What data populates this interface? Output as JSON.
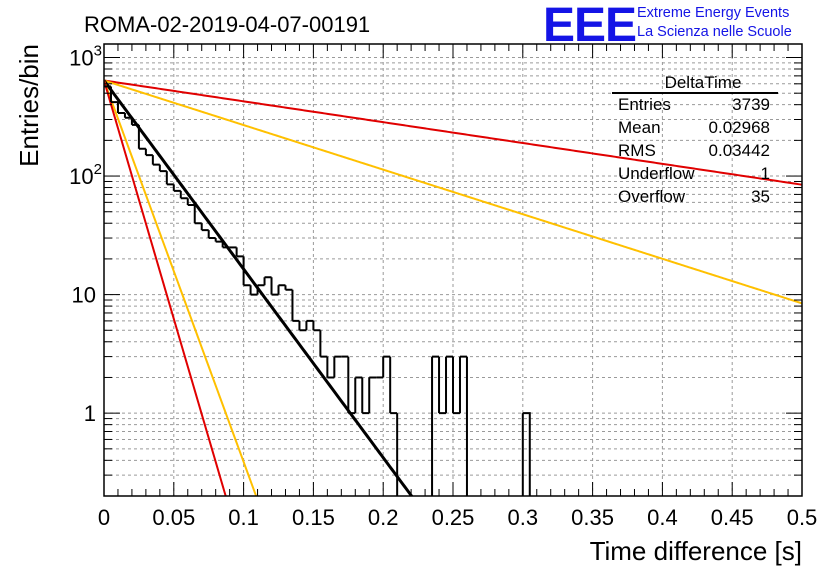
{
  "title": "ROMA-02-2019-04-07-00191",
  "logo": {
    "mark": "EEE",
    "line1": "Extreme Energy Events",
    "line2": "La Scienza nelle Scuole",
    "color": "#1414e6"
  },
  "stats_box": {
    "title": "DeltaTime",
    "rows": [
      {
        "label": "Entries",
        "value": "3739"
      },
      {
        "label": "Mean",
        "value": "0.02968"
      },
      {
        "label": "RMS",
        "value": "0.03442"
      },
      {
        "label": "Underflow",
        "value": "1"
      },
      {
        "label": "Overflow",
        "value": "35"
      }
    ]
  },
  "chart_data": {
    "type": "histogram",
    "title": "ROMA-02-2019-04-07-00191",
    "xlabel": "Time difference [s]",
    "ylabel": "Entries/bin",
    "xlim": [
      0,
      0.5
    ],
    "ylim": [
      0.2,
      1300
    ],
    "yscale": "log",
    "grid": true,
    "x_ticks": [
      "0",
      "0.05",
      "0.1",
      "0.15",
      "0.2",
      "0.25",
      "0.3",
      "0.35",
      "0.4",
      "0.45",
      "0.5"
    ],
    "y_ticks": [
      "1",
      "10",
      "10^2",
      "10^3"
    ],
    "histogram": {
      "bin_width": 0.005,
      "color": "#000000",
      "values": [
        570,
        420,
        340,
        310,
        270,
        170,
        150,
        125,
        110,
        85,
        75,
        65,
        57,
        40,
        35,
        30,
        28,
        25,
        25,
        21,
        12,
        10,
        12,
        14,
        10,
        12,
        11,
        6,
        5,
        6,
        5,
        3,
        2,
        3,
        3,
        1,
        2,
        1,
        2,
        2,
        3,
        1,
        0,
        0,
        0,
        0,
        0,
        3,
        1,
        3,
        1,
        3,
        0,
        0,
        0,
        0,
        0,
        0,
        0,
        0,
        1
      ]
    },
    "curves": [
      {
        "color": "#e00000",
        "A": 640,
        "tau": 0.247
      },
      {
        "color": "#ffc000",
        "A": 640,
        "tau": 0.1155
      },
      {
        "color": "#000000",
        "A": 640,
        "tau": 0.0273
      },
      {
        "color": "#ffc000",
        "A": 640,
        "tau": 0.0135
      },
      {
        "color": "#e00000",
        "A": 640,
        "tau": 0.0108
      }
    ]
  }
}
